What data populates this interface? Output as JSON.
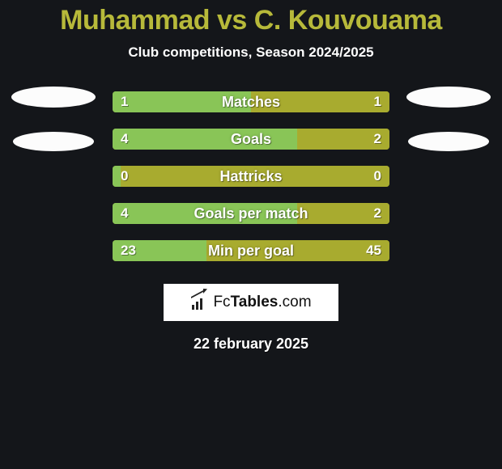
{
  "background_color": "#14161a",
  "title": {
    "left_name": "Muhammad",
    "vs": " vs ",
    "right_name": "C. Kouvouama",
    "color": "#b7b93a",
    "fontsize": 34
  },
  "subtitle": {
    "text": "Club competitions, Season 2024/2025",
    "color": "#ffffff",
    "fontsize": 17
  },
  "avatar": {
    "bg": "#fcfcfc"
  },
  "bars": {
    "track_color": "#a8ab2f",
    "left_fill": "#89c557",
    "right_fill": "#a8ab2f",
    "label_color": "#ffffff",
    "value_color": "#ffffff",
    "label_fontsize": 18,
    "value_fontsize": 17,
    "rows": [
      {
        "label": "Matches",
        "left_val": "1",
        "right_val": "1",
        "left_num": 1,
        "right_num": 1
      },
      {
        "label": "Goals",
        "left_val": "4",
        "right_val": "2",
        "left_num": 4,
        "right_num": 2
      },
      {
        "label": "Hattricks",
        "left_val": "0",
        "right_val": "0",
        "left_num": 0,
        "right_num": 0
      },
      {
        "label": "Goals per match",
        "left_val": "4",
        "right_val": "2",
        "left_num": 4,
        "right_num": 2
      },
      {
        "label": "Min per goal",
        "left_val": "23",
        "right_val": "45",
        "left_num": 23,
        "right_num": 45
      }
    ]
  },
  "logo": {
    "text_prefix": "Fc",
    "text_bold": "Tables",
    "text_suffix": ".com",
    "fontsize": 19,
    "bg": "#ffffff"
  },
  "date": {
    "text": "22 february 2025",
    "color": "#ffffff",
    "fontsize": 18
  }
}
